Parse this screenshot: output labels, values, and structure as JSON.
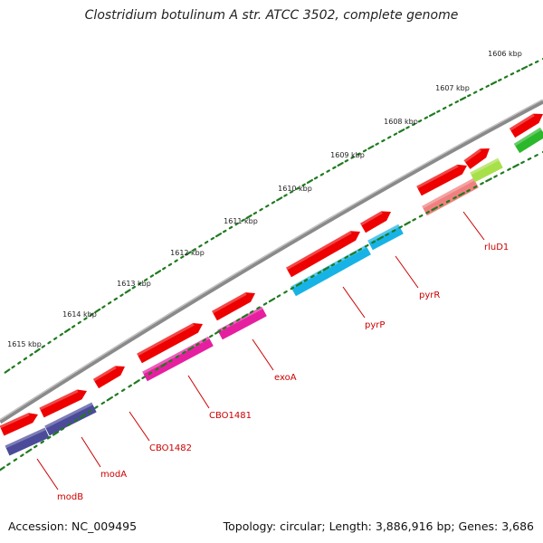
{
  "title": "Clostridium botulinum A str. ATCC 3502, complete genome",
  "footer": {
    "accession": "Accession: NC_009495",
    "topology": "Topology: circular; Length: 3,886,916 bp; Genes: 3,686"
  },
  "ruler": {
    "ticks": [
      "1606 kbp",
      "1607 kbp",
      "1608 kbp",
      "1609 kbp",
      "1610 kbp",
      "1611 kbp",
      "1612 kbp",
      "1613 kbp",
      "1614 kbp",
      "1615 kbp"
    ]
  },
  "colors": {
    "backbone": "#8a8a8a",
    "tick": "#1e7a1e",
    "cds_forward": "#ee0000",
    "gene_label": "#cc0000",
    "cog_navy": "#4b4b9a",
    "cog_magenta": "#e61fa0",
    "cog_cyan": "#17b3e6",
    "cog_salmon": "#f08080",
    "cog_lime": "#a8e04a",
    "cog_green": "#2bb82b"
  },
  "genes": [
    {
      "name": "modB",
      "color": "cog_navy"
    },
    {
      "name": "modA",
      "color": "cog_navy"
    },
    {
      "name": "CBO1482",
      "color": null
    },
    {
      "name": "CBO1481",
      "color": "cog_magenta"
    },
    {
      "name": "exoA",
      "color": "cog_magenta"
    },
    {
      "name": "pyrP",
      "color": "cog_cyan"
    },
    {
      "name": "pyrR",
      "color": "cog_cyan"
    },
    {
      "name": "rluD1",
      "color": "cog_salmon"
    }
  ],
  "extra_features": [
    {
      "color": "cog_lime"
    },
    {
      "color": "cog_green"
    }
  ]
}
